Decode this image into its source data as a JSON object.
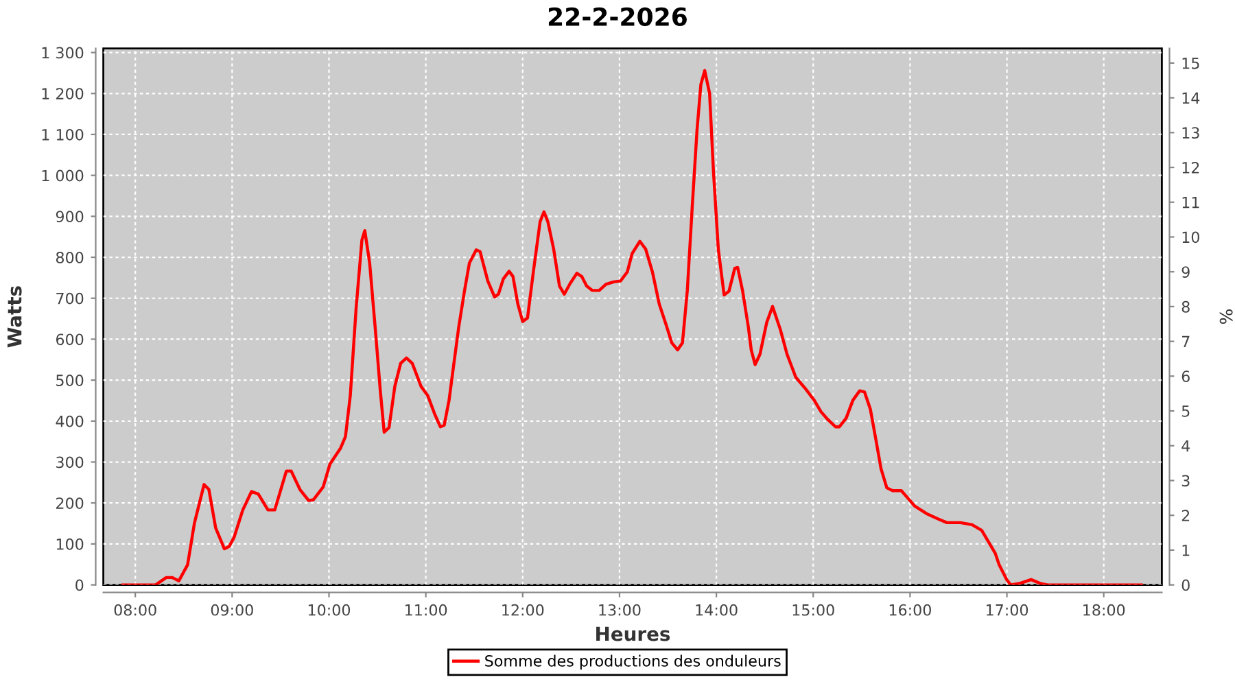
{
  "chart_data": {
    "type": "line",
    "title": "22-2-2026",
    "xlabel": "Heures",
    "ylabel": "Watts",
    "y2label": "%",
    "x": [
      7.87,
      8.21,
      8.32,
      8.38,
      8.45,
      8.54,
      8.61,
      8.71,
      8.76,
      8.83,
      8.92,
      8.97,
      9.02,
      9.11,
      9.2,
      9.27,
      9.37,
      9.44,
      9.56,
      9.61,
      9.7,
      9.79,
      9.84,
      9.94,
      10.01,
      10.12,
      10.17,
      10.22,
      10.28,
      10.34,
      10.37,
      10.42,
      10.48,
      10.53,
      10.57,
      10.62,
      10.68,
      10.74,
      10.8,
      10.86,
      10.95,
      11.02,
      11.09,
      11.15,
      11.19,
      11.24,
      11.29,
      11.34,
      11.4,
      11.45,
      11.52,
      11.56,
      11.64,
      11.71,
      11.75,
      11.8,
      11.86,
      11.9,
      11.95,
      12.0,
      12.05,
      12.11,
      12.18,
      12.22,
      12.26,
      12.32,
      12.38,
      12.43,
      12.49,
      12.56,
      12.61,
      12.66,
      12.72,
      12.79,
      12.86,
      12.94,
      13.01,
      13.08,
      13.13,
      13.21,
      13.27,
      13.34,
      13.41,
      13.48,
      13.54,
      13.6,
      13.65,
      13.7,
      13.75,
      13.8,
      13.84,
      13.88,
      13.93,
      13.97,
      14.02,
      14.08,
      14.13,
      14.19,
      14.22,
      14.27,
      14.33,
      14.36,
      14.4,
      14.45,
      14.52,
      14.58,
      14.66,
      14.73,
      14.82,
      14.92,
      15.01,
      15.08,
      15.15,
      15.23,
      15.27,
      15.34,
      15.41,
      15.48,
      15.53,
      15.59,
      15.65,
      15.7,
      15.76,
      15.82,
      15.91,
      15.98,
      16.05,
      16.17,
      16.29,
      16.38,
      16.52,
      16.64,
      16.74,
      16.81,
      16.88,
      16.92,
      17.0,
      17.04,
      17.14,
      17.25,
      17.35,
      17.42,
      18.39
    ],
    "series": [
      {
        "name": "Somme des productions des onduleurs",
        "color": "#ff0000",
        "values": [
          0,
          0,
          18,
          18,
          10,
          49,
          150,
          245,
          233,
          139,
          88,
          94,
          116,
          183,
          228,
          222,
          183,
          183,
          278,
          278,
          233,
          206,
          208,
          239,
          295,
          334,
          362,
          462,
          675,
          842,
          865,
          786,
          620,
          474,
          373,
          384,
          485,
          541,
          554,
          541,
          485,
          462,
          418,
          386,
          390,
          451,
          541,
          630,
          719,
          786,
          818,
          814,
          742,
          703,
          710,
          747,
          766,
          753,
          686,
          643,
          652,
          764,
          887,
          911,
          887,
          820,
          730,
          710,
          736,
          761,
          753,
          730,
          719,
          719,
          734,
          740,
          742,
          764,
          809,
          839,
          820,
          764,
          686,
          636,
          591,
          574,
          591,
          719,
          920,
          1110,
          1222,
          1256,
          1200,
          1010,
          820,
          708,
          717,
          773,
          775,
          719,
          630,
          574,
          538,
          563,
          641,
          680,
          624,
          563,
          507,
          479,
          451,
          423,
          404,
          386,
          386,
          407,
          451,
          474,
          471,
          429,
          351,
          284,
          237,
          230,
          230,
          211,
          192,
          174,
          161,
          152,
          152,
          147,
          133,
          105,
          77,
          49,
          12,
          0,
          4,
          13,
          3,
          0,
          0
        ]
      }
    ],
    "xlim": [
      7.67,
      18.6
    ],
    "xticks": [
      {
        "value": 8,
        "label": "08:00"
      },
      {
        "value": 9,
        "label": "09:00"
      },
      {
        "value": 10,
        "label": "10:00"
      },
      {
        "value": 11,
        "label": "11:00"
      },
      {
        "value": 12,
        "label": "12:00"
      },
      {
        "value": 13,
        "label": "13:00"
      },
      {
        "value": 14,
        "label": "14:00"
      },
      {
        "value": 15,
        "label": "15:00"
      },
      {
        "value": 16,
        "label": "16:00"
      },
      {
        "value": 17,
        "label": "17:00"
      },
      {
        "value": 18,
        "label": "18:00"
      }
    ],
    "ylim": [
      0,
      1310
    ],
    "yticks": [
      0,
      100,
      200,
      300,
      400,
      500,
      600,
      700,
      800,
      900,
      {
        "value": 1000,
        "label": "1 000"
      },
      {
        "value": 1100,
        "label": "1 100"
      },
      {
        "value": 1200,
        "label": "1 200"
      },
      {
        "value": 1300,
        "label": "1 300"
      }
    ],
    "y2lim": [
      0,
      15.42
    ],
    "y2ticks": [
      0,
      1,
      2,
      3,
      4,
      5,
      6,
      7,
      8,
      9,
      10,
      11,
      12,
      13,
      14,
      15
    ],
    "grid": true,
    "legend": "bottom"
  }
}
